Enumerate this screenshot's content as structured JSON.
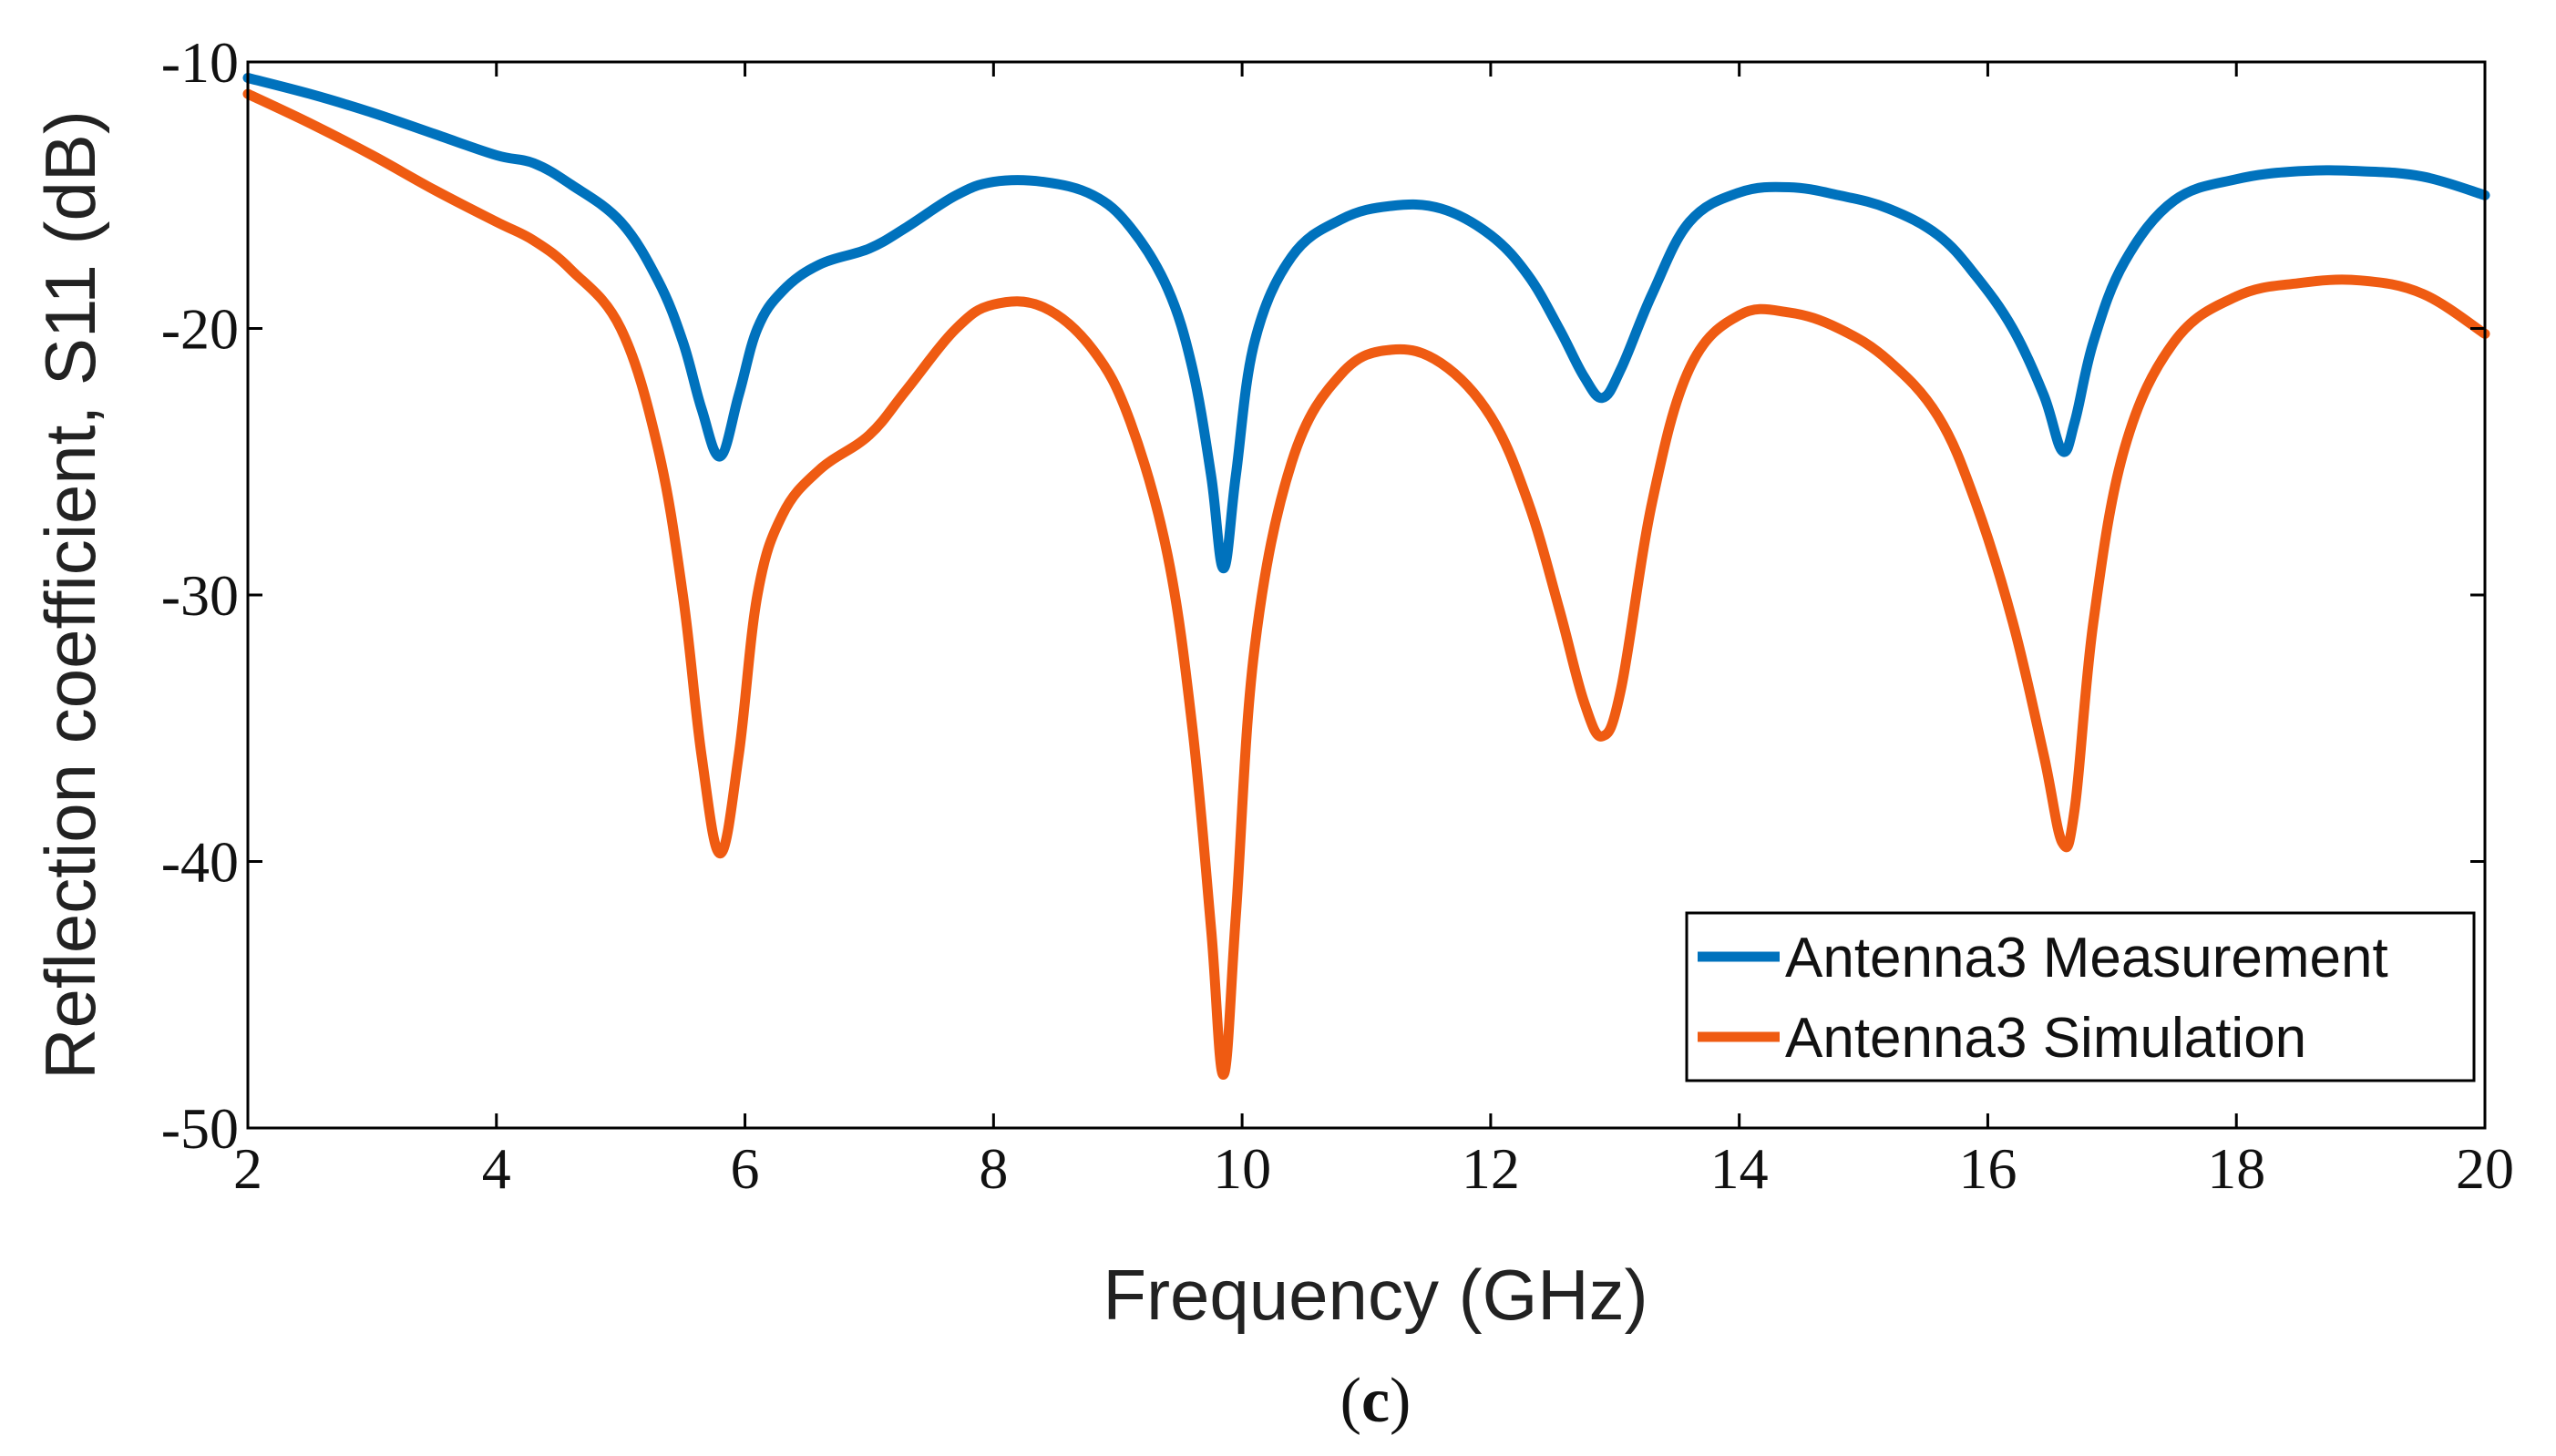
{
  "chart_data": {
    "type": "line",
    "title": "",
    "xlabel": "Frequency (GHz)",
    "ylabel": "Reflection coefficient, S11 (dB)",
    "caption": {
      "open": "(",
      "letter": "c",
      "close": ")"
    },
    "xlim": [
      2,
      20
    ],
    "ylim": [
      -50,
      -10
    ],
    "xticks": [
      2,
      4,
      6,
      8,
      10,
      12,
      14,
      16,
      18,
      20
    ],
    "yticks": [
      -10,
      -20,
      -30,
      -40,
      -50
    ],
    "grid": false,
    "legend_position": "bottom-right",
    "series": [
      {
        "name": "Antenna3 Measurement",
        "color": "#0072BD",
        "x": [
          2,
          2.5,
          3,
          3.5,
          4,
          4.3,
          4.6,
          5,
          5.3,
          5.5,
          5.65,
          5.8,
          5.95,
          6.1,
          6.3,
          6.6,
          7,
          7.3,
          7.7,
          8,
          8.4,
          8.8,
          9.1,
          9.4,
          9.6,
          9.75,
          9.85,
          9.95,
          10.1,
          10.4,
          10.8,
          11.2,
          11.6,
          12,
          12.3,
          12.55,
          12.75,
          12.9,
          13.05,
          13.3,
          13.6,
          14,
          14.4,
          14.8,
          15.2,
          15.6,
          15.9,
          16.2,
          16.45,
          16.6,
          16.7,
          16.85,
          17.1,
          17.5,
          18,
          18.5,
          19,
          19.5,
          20
        ],
        "y": [
          -10.6,
          -11.2,
          -11.9,
          -12.7,
          -13.5,
          -13.8,
          -14.6,
          -16.0,
          -18.2,
          -20.5,
          -23.0,
          -24.8,
          -22.5,
          -20.0,
          -18.6,
          -17.6,
          -17.0,
          -16.2,
          -15.0,
          -14.5,
          -14.5,
          -15.0,
          -16.2,
          -18.5,
          -21.5,
          -25.5,
          -29.0,
          -25.5,
          -20.5,
          -17.3,
          -15.9,
          -15.4,
          -15.5,
          -16.5,
          -18.0,
          -20.0,
          -21.8,
          -22.6,
          -21.5,
          -18.7,
          -16.0,
          -14.9,
          -14.7,
          -15.0,
          -15.5,
          -16.5,
          -18.0,
          -20.0,
          -22.5,
          -24.6,
          -23.5,
          -20.5,
          -17.5,
          -15.2,
          -14.4,
          -14.1,
          -14.1,
          -14.3,
          -15.0
        ]
      },
      {
        "name": "Antenna3 Simulation",
        "color": "#EF5B12",
        "x": [
          2,
          2.5,
          3,
          3.5,
          4,
          4.3,
          4.6,
          5,
          5.3,
          5.5,
          5.65,
          5.8,
          5.95,
          6.1,
          6.3,
          6.6,
          7,
          7.3,
          7.7,
          8,
          8.4,
          8.8,
          9.1,
          9.4,
          9.6,
          9.75,
          9.85,
          9.95,
          10.1,
          10.4,
          10.8,
          11.2,
          11.6,
          12,
          12.3,
          12.55,
          12.75,
          12.9,
          13.05,
          13.3,
          13.6,
          14,
          14.4,
          14.8,
          15.2,
          15.6,
          15.9,
          16.2,
          16.45,
          16.6,
          16.7,
          16.85,
          17.1,
          17.5,
          18,
          18.5,
          19,
          19.5,
          20
        ],
        "y": [
          -11.2,
          -12.3,
          -13.5,
          -14.8,
          -16.0,
          -16.7,
          -17.8,
          -20.0,
          -24.5,
          -30.0,
          -36.0,
          -39.7,
          -36.0,
          -30.0,
          -27.0,
          -25.3,
          -24.0,
          -22.3,
          -20.0,
          -19.1,
          -19.2,
          -20.8,
          -23.5,
          -28.5,
          -35.0,
          -42.5,
          -48.0,
          -42.0,
          -32.0,
          -25.0,
          -21.7,
          -20.8,
          -21.3,
          -23.3,
          -26.5,
          -30.5,
          -34.0,
          -35.3,
          -33.5,
          -26.5,
          -21.5,
          -19.5,
          -19.4,
          -20.0,
          -21.2,
          -23.3,
          -26.5,
          -31.0,
          -36.0,
          -39.3,
          -38.0,
          -31.0,
          -24.5,
          -20.5,
          -18.8,
          -18.3,
          -18.2,
          -18.7,
          -20.2
        ]
      }
    ]
  }
}
